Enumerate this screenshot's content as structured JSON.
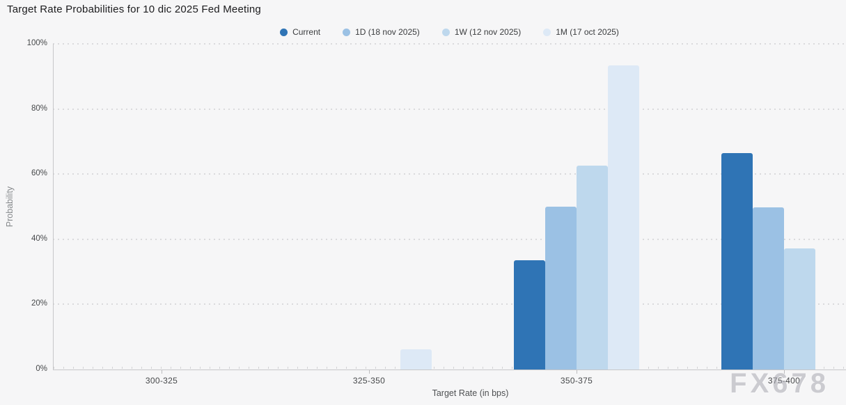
{
  "page": {
    "title": "Target Rate Probabilities for 10 dic 2025 Fed Meeting",
    "watermark": "FX678"
  },
  "chart_data": {
    "type": "bar",
    "title": "Target Rate Probabilities for 10 dic 2025 Fed Meeting",
    "xlabel": "Target Rate (in bps)",
    "ylabel": "Probability",
    "ylim": [
      0,
      100
    ],
    "ytick_labels": [
      "0%",
      "20%",
      "40%",
      "60%",
      "80%",
      "100%"
    ],
    "grid": "dotted-horizontal",
    "legend_position": "top-center",
    "categories": [
      "300-325",
      "325-350",
      "350-375",
      "375-400"
    ],
    "series": [
      {
        "name": "Current",
        "color": "#2f74b5",
        "values": [
          0,
          0,
          33.5,
          66.4
        ]
      },
      {
        "name": "1D (18 nov 2025)",
        "color": "#9bc1e4",
        "values": [
          0,
          0,
          50.1,
          49.7
        ]
      },
      {
        "name": "1W (12 nov 2025)",
        "color": "#bed8ed",
        "values": [
          0,
          0,
          62.7,
          37.1
        ]
      },
      {
        "name": "1M (17 oct 2025)",
        "color": "#dde9f6",
        "values": [
          0,
          6.2,
          93.4,
          0
        ]
      }
    ]
  }
}
